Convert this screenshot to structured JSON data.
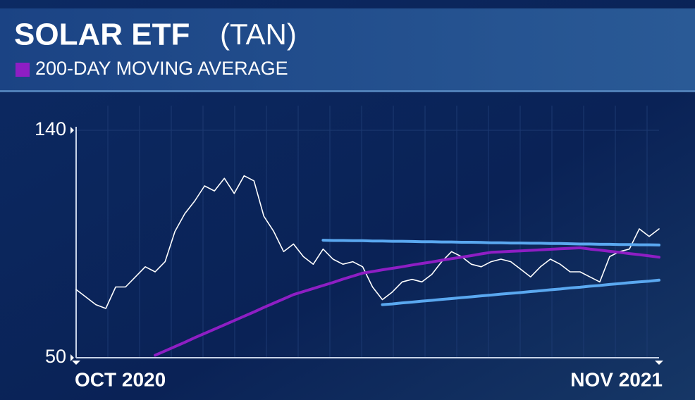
{
  "chart_data": {
    "type": "line",
    "title": "SOLAR ETF",
    "ticker": "(TAN)",
    "categories": [
      "OCT 2020",
      null,
      null,
      null,
      null,
      null,
      null,
      null,
      null,
      null,
      null,
      null,
      null,
      null,
      null,
      null,
      null,
      null,
      null,
      null,
      null,
      null,
      null,
      null,
      null,
      null,
      null,
      null,
      null,
      null,
      null,
      null,
      null,
      null,
      null,
      null,
      null,
      null,
      null,
      null,
      null,
      null,
      null,
      null,
      null,
      null,
      null,
      null,
      null,
      null,
      null,
      null,
      null,
      null,
      null,
      null,
      null,
      null,
      null,
      "NOV 2021"
    ],
    "series": [
      {
        "color": "#ffffff",
        "values": [
          77,
          74,
          71,
          69.5,
          78,
          78,
          82,
          86,
          84,
          88,
          100,
          107,
          112,
          118,
          116,
          121,
          115,
          122,
          120,
          106,
          100,
          92,
          95,
          90,
          87,
          93,
          89,
          87,
          88,
          86,
          78,
          73,
          76,
          80,
          81,
          80,
          83,
          88,
          92,
          90,
          87,
          86,
          88,
          89,
          88,
          85,
          82,
          86,
          89,
          87,
          84,
          84,
          82,
          80,
          90,
          92,
          93,
          101,
          98,
          101
        ]
      },
      {
        "name": "200-DAY MOVING AVERAGE",
        "color": "#8e1ec4",
        "values": [
          null,
          null,
          null,
          null,
          null,
          null,
          null,
          null,
          51,
          52.7,
          54.4,
          56.1,
          57.9,
          59.6,
          61.3,
          63.0,
          64.7,
          66.4,
          68.1,
          69.9,
          71.6,
          73.3,
          75.0,
          76.2,
          77.4,
          78.6,
          79.8,
          81.1,
          82.3,
          83.5,
          84.1,
          84.8,
          85.4,
          86.0,
          86.7,
          87.3,
          87.9,
          88.6,
          89.2,
          89.8,
          90.4,
          91.1,
          91.7,
          91.9,
          92.1,
          92.3,
          92.5,
          92.7,
          92.9,
          93.1,
          93.3,
          93.5,
          93.0,
          92.6,
          92.1,
          91.7,
          91.2,
          90.8,
          90.3,
          89.8
        ]
      },
      {
        "color": "#5aa8f0",
        "values": [
          null,
          null,
          null,
          null,
          null,
          null,
          null,
          null,
          null,
          null,
          null,
          null,
          null,
          null,
          null,
          null,
          null,
          null,
          null,
          null,
          null,
          null,
          null,
          null,
          null,
          96.5,
          96.4,
          96.4,
          96.3,
          96.3,
          96.2,
          96.2,
          96.1,
          96.1,
          96.0,
          95.9,
          95.9,
          95.8,
          95.8,
          95.7,
          95.7,
          95.6,
          95.5,
          95.5,
          95.4,
          95.4,
          95.3,
          95.3,
          95.2,
          95.2,
          95.1,
          95.0,
          95.0,
          94.9,
          94.9,
          94.8,
          94.8,
          94.7,
          94.7,
          94.6
        ]
      },
      {
        "color": "#5aa8f0",
        "values": [
          null,
          null,
          null,
          null,
          null,
          null,
          null,
          null,
          null,
          null,
          null,
          null,
          null,
          null,
          null,
          null,
          null,
          null,
          null,
          null,
          null,
          null,
          null,
          null,
          null,
          null,
          null,
          null,
          null,
          null,
          null,
          71.0,
          71.3,
          71.7,
          72.0,
          72.4,
          72.7,
          73.1,
          73.4,
          73.8,
          74.1,
          74.5,
          74.8,
          75.2,
          75.5,
          75.8,
          76.2,
          76.5,
          76.9,
          77.2,
          77.6,
          77.9,
          78.3,
          78.6,
          79.0,
          79.3,
          79.7,
          80.0,
          80.3,
          80.7
        ]
      }
    ],
    "ylim": [
      50,
      140
    ],
    "yticks": [
      50,
      140
    ],
    "grid": true
  }
}
